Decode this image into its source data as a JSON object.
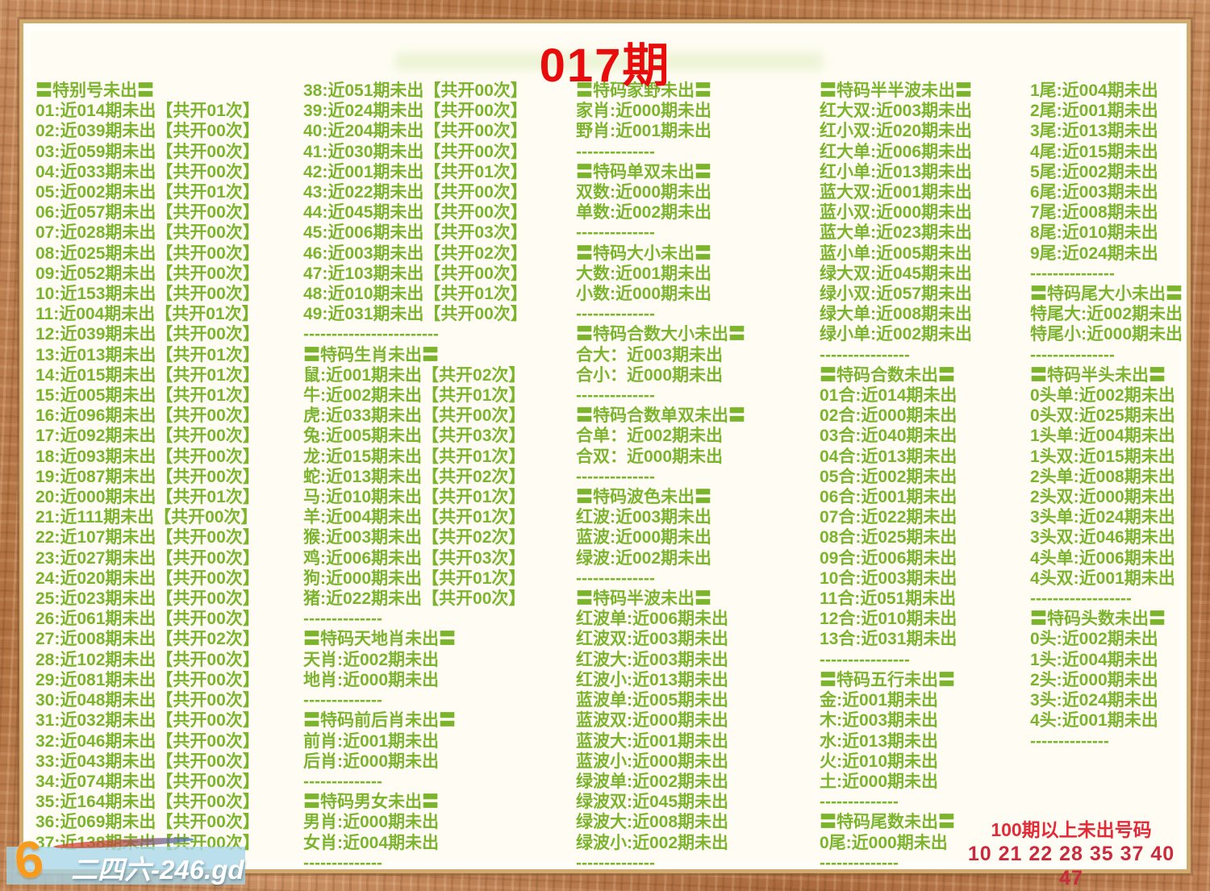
{
  "title": "017期",
  "colors": {
    "text_green": "#7cb42e",
    "title_red": "#e80c0c",
    "alert_red": "#e12b39",
    "page_bg": "#fffdf3",
    "frame_wood": "#b5774b",
    "frame_inner": "#d0aa6e",
    "watermark_band": "#a8d6e8",
    "watermark_logo_orange": "#f79b1e"
  },
  "columns": [
    {
      "id": "col-1",
      "lines": [
        "〓特别号未出〓",
        "01:近014期未出【共开01次】",
        "02:近039期未出【共开00次】",
        "03:近059期未出【共开00次】",
        "04:近033期未出【共开00次】",
        "05:近002期未出【共开01次】",
        "06:近057期未出【共开00次】",
        "07:近028期未出【共开00次】",
        "08:近025期未出【共开00次】",
        "09:近052期未出【共开00次】",
        "10:近153期未出【共开00次】",
        "11:近004期未出【共开01次】",
        "12:近039期未出【共开00次】",
        "13:近013期未出【共开01次】",
        "14:近015期未出【共开01次】",
        "15:近005期未出【共开01次】",
        "16:近096期未出【共开00次】",
        "17:近092期未出【共开00次】",
        "18:近093期未出【共开00次】",
        "19:近087期未出【共开00次】",
        "20:近000期未出【共开01次】",
        "21:近111期未出【共开00次】",
        "22:近107期未出【共开00次】",
        "23:近027期未出【共开00次】",
        "24:近020期未出【共开00次】",
        "25:近023期未出【共开00次】",
        "26:近061期未出【共开00次】",
        "27:近008期未出【共开02次】",
        "28:近102期未出【共开00次】",
        "29:近081期未出【共开00次】",
        "30:近048期未出【共开00次】",
        "31:近032期未出【共开00次】",
        "32:近046期未出【共开00次】",
        "33:近043期未出【共开00次】",
        "34:近074期未出【共开00次】",
        "35:近164期未出【共开00次】",
        "36:近069期未出【共开00次】",
        "37:近138期未出【共开00次】"
      ]
    },
    {
      "id": "col-2",
      "lines": [
        "38:近051期未出【共开00次】",
        "39:近024期未出【共开00次】",
        "40:近204期未出【共开00次】",
        "41:近030期未出【共开00次】",
        "42:近001期未出【共开01次】",
        "43:近022期未出【共开00次】",
        "44:近045期未出【共开00次】",
        "45:近006期未出【共开03次】",
        "46:近003期未出【共开02次】",
        "47:近103期未出【共开00次】",
        "48:近010期未出【共开01次】",
        "49:近031期未出【共开00次】",
        "------------------------",
        "〓特码生肖未出〓",
        "鼠:近001期未出【共开02次】",
        "牛:近002期未出【共开01次】",
        "虎:近033期未出【共开00次】",
        "兔:近005期未出【共开03次】",
        "龙:近015期未出【共开01次】",
        "蛇:近013期未出【共开02次】",
        "马:近010期未出【共开01次】",
        "羊:近004期未出【共开01次】",
        "猴:近003期未出【共开02次】",
        "鸡:近006期未出【共开03次】",
        "狗:近000期未出【共开01次】",
        "猪:近022期未出【共开00次】",
        "--------------",
        "〓特码天地肖未出〓",
        "天肖:近002期未出",
        "地肖:近000期未出",
        "--------------",
        "〓特码前后肖未出〓",
        "前肖:近001期未出",
        "后肖:近000期未出",
        "--------------",
        "〓特码男女未出〓",
        "男肖:近000期未出",
        "女肖:近004期未出",
        "--------------"
      ]
    },
    {
      "id": "col-3",
      "lines": [
        "〓特码家野未出〓",
        "家肖:近000期未出",
        "野肖:近001期未出",
        "--------------",
        "〓特码单双未出〓",
        "双数:近000期未出",
        "单数:近002期未出",
        "--------------",
        "〓特码大小未出〓",
        "大数:近001期未出",
        "小数:近000期未出",
        "--------------",
        "〓特码合数大小未出〓",
        "合大：近003期未出",
        "合小：近000期未出",
        "--------------",
        "〓特码合数单双未出〓",
        "合单：近002期未出",
        "合双：近000期未出",
        "--------------",
        "〓特码波色未出〓",
        "红波:近003期未出",
        "蓝波:近000期未出",
        "绿波:近002期未出",
        "--------------",
        "〓特码半波未出〓",
        "红波单:近006期未出",
        "红波双:近003期未出",
        "红波大:近003期未出",
        "红波小:近013期未出",
        "蓝波单:近005期未出",
        "蓝波双:近000期未出",
        "蓝波大:近001期未出",
        "蓝波小:近000期未出",
        "绿波单:近002期未出",
        "绿波双:近045期未出",
        "绿波大:近008期未出",
        "绿波小:近002期未出",
        "--------------"
      ]
    },
    {
      "id": "col-4",
      "lines": [
        "〓特码半半波未出〓",
        "红大双:近003期未出",
        "红小双:近020期未出",
        "红大单:近006期未出",
        "红小单:近013期未出",
        "蓝大双:近001期未出",
        "蓝小双:近000期未出",
        "蓝大单:近023期未出",
        "蓝小单:近005期未出",
        "绿大双:近045期未出",
        "绿小双:近057期未出",
        "绿大单:近008期未出",
        "绿小单:近002期未出",
        "----------------",
        "〓特码合数未出〓",
        "01合:近014期未出",
        "02合:近000期未出",
        "03合:近040期未出",
        "04合:近013期未出",
        "05合:近002期未出",
        "06合:近001期未出",
        "07合:近022期未出",
        "08合:近025期未出",
        "09合:近006期未出",
        "10合:近003期未出",
        "11合:近051期未出",
        "12合:近010期未出",
        "13合:近031期未出",
        "----------------",
        "〓特码五行未出〓",
        "金:近001期未出",
        "木:近003期未出",
        "水:近013期未出",
        "火:近010期未出",
        "土:近000期未出",
        "--------------",
        "〓特码尾数未出〓",
        "0尾:近000期未出",
        "--------------"
      ]
    },
    {
      "id": "col-5",
      "lines": [
        "1尾:近004期未出",
        "2尾:近001期未出",
        "3尾:近013期未出",
        "4尾:近015期未出",
        "5尾:近002期未出",
        "6尾:近003期未出",
        "7尾:近008期未出",
        "8尾:近010期未出",
        "9尾:近024期未出",
        "---------------",
        "〓特码尾大小未出〓",
        "特尾大:近002期未出",
        "特尾小:近000期未出",
        "---------------",
        "〓特码半头未出〓",
        "0头单:近002期未出",
        "0头双:近025期未出",
        "1头单:近004期未出",
        "1头双:近015期未出",
        "2头单:近008期未出",
        "2头双:近000期未出",
        "3头单:近024期未出",
        "3头双:近046期未出",
        "4头单:近006期未出",
        "4头双:近001期未出",
        "------------------",
        "〓特码头数未出〓",
        "0头:近002期未出",
        "1头:近004期未出",
        "2头:近000期未出",
        "3头:近024期未出",
        "4头:近001期未出",
        "--------------"
      ]
    }
  ],
  "alert": {
    "line1": "100期以上未出号码",
    "line2": "10 21 22 28 35 37 40 47"
  },
  "watermark": {
    "logo": "6",
    "text": "二四六-246.gd"
  }
}
